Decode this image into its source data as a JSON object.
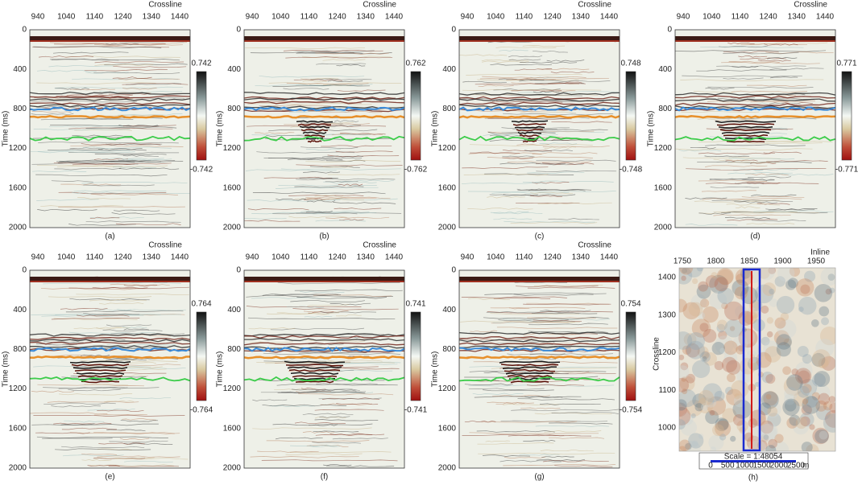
{
  "panels": [
    {
      "label": "(a)",
      "x_title": "Crossline",
      "y_title": "Time (ms)",
      "colorbar_max": 0.742,
      "colorbar_min": -0.742
    },
    {
      "label": "(b)",
      "x_title": "Crossline",
      "y_title": "Time (ms)",
      "colorbar_max": 0.762,
      "colorbar_min": -0.762
    },
    {
      "label": "(c)",
      "x_title": "Crossline",
      "y_title": "Time (ms)",
      "colorbar_max": 0.748,
      "colorbar_min": -0.748
    },
    {
      "label": "(d)",
      "x_title": "Crossline",
      "y_title": "Time (ms)",
      "colorbar_max": 0.771,
      "colorbar_min": -0.771
    },
    {
      "label": "(e)",
      "x_title": "Crossline",
      "y_title": "Time (ms)",
      "colorbar_max": 0.764,
      "colorbar_min": -0.764
    },
    {
      "label": "(f)",
      "x_title": "Crossline",
      "y_title": "Time (ms)",
      "colorbar_max": 0.741,
      "colorbar_min": -0.741
    },
    {
      "label": "(g)",
      "x_title": "Crossline",
      "y_title": "Time (ms)",
      "colorbar_max": 0.754,
      "colorbar_min": -0.754
    }
  ],
  "x_ticks": [
    940,
    1040,
    1140,
    1240,
    1340,
    1440
  ],
  "y_ticks": [
    0,
    400,
    800,
    1200,
    1600,
    2000
  ],
  "map": {
    "label": "(h)",
    "x_title": "Inline",
    "y_title": "Crossline",
    "x_ticks": [
      1750,
      1800,
      1850,
      1900,
      1950
    ],
    "y_ticks": [
      1400,
      1300,
      1200,
      1100,
      1000
    ],
    "scale_title": "Scale = 1:48054",
    "scale_ticks": [
      0,
      500,
      1000,
      1500,
      2000,
      2500
    ],
    "scale_unit": "m"
  }
}
